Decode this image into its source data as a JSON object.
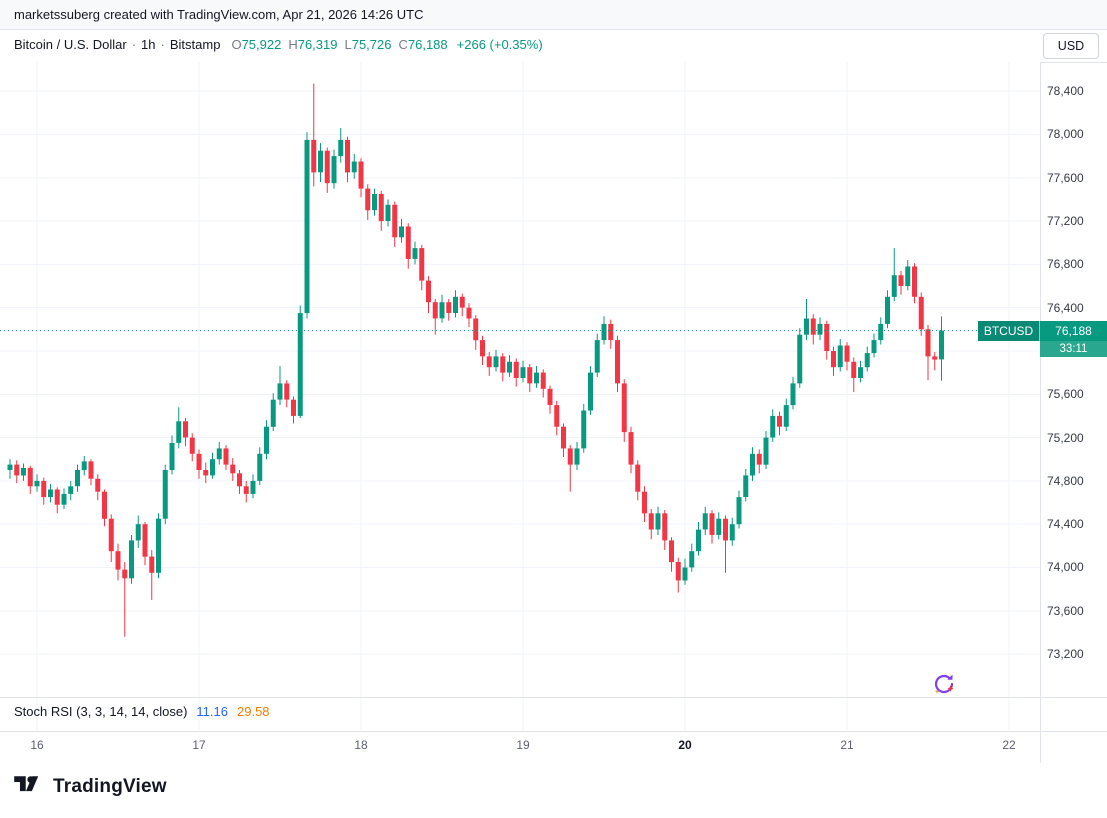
{
  "top_bar": {
    "attribution": "marketssuberg created with TradingView.com, Apr 21, 2026 14:26 UTC"
  },
  "legend": {
    "symbol_title": "Bitcoin / U.S. Dollar",
    "separator": "·",
    "interval": "1h",
    "exchange": "Bitstamp",
    "ohlc": {
      "o_label": "O",
      "o": "75,922",
      "h_label": "H",
      "h": "76,319",
      "l_label": "L",
      "l": "75,726",
      "c_label": "C",
      "c": "76,188"
    },
    "change": "+266 (+0.35%)"
  },
  "price_scale": {
    "currency_button": "USD",
    "labels": [
      {
        "value": 78400,
        "text": "78,400"
      },
      {
        "value": 78000,
        "text": "78,000"
      },
      {
        "value": 77600,
        "text": "77,600"
      },
      {
        "value": 77200,
        "text": "77,200"
      },
      {
        "value": 76800,
        "text": "76,800"
      },
      {
        "value": 76400,
        "text": "76,400"
      },
      {
        "value": 75600,
        "text": "75,600"
      },
      {
        "value": 75200,
        "text": "75,200"
      },
      {
        "value": 74800,
        "text": "74,800"
      },
      {
        "value": 74400,
        "text": "74,400"
      },
      {
        "value": 74000,
        "text": "74,000"
      },
      {
        "value": 73600,
        "text": "73,600"
      },
      {
        "value": 73200,
        "text": "73,200"
      }
    ],
    "badge": {
      "symbol": "BTCUSD",
      "price": "76,188",
      "countdown": "33:11"
    }
  },
  "indicator": {
    "name": "Stoch RSI (3, 3, 14, 14, close)",
    "k_value": "11.16",
    "d_value": "29.58"
  },
  "footer": {
    "brand": "TradingView"
  },
  "colors": {
    "up": "#089981",
    "down": "#f23645",
    "grid": "#f0f3fa",
    "k_line": "#2962ff",
    "d_line": "#f57c00"
  },
  "chart_data": {
    "type": "candlestick",
    "title": "Bitcoin / U.S. Dollar",
    "symbol": "BTCUSD",
    "exchange": "Bitstamp",
    "interval": "1h",
    "current_price": 76188,
    "countdown": "33:11",
    "change": {
      "abs": 266,
      "pct": 0.35
    },
    "last_candle": {
      "open": 75922,
      "high": 76319,
      "low": 75726,
      "close": 76188
    },
    "y_axis": {
      "min": 72900,
      "max": 78650,
      "tick_step": 400,
      "grid_ticks": [
        73200,
        73600,
        74000,
        74400,
        74800,
        75200,
        75600,
        76000,
        76400,
        76800,
        77200,
        77600,
        78000,
        78400
      ]
    },
    "x_axis": {
      "unit": "day-of-month (Apr 2026), hourly candles",
      "labels": [
        {
          "text": "16",
          "index": 4,
          "bold": false
        },
        {
          "text": "17",
          "index": 28,
          "bold": false
        },
        {
          "text": "18",
          "index": 52,
          "bold": false
        },
        {
          "text": "19",
          "index": 76,
          "bold": false
        },
        {
          "text": "20",
          "index": 100,
          "bold": true
        },
        {
          "text": "21",
          "index": 124,
          "bold": false
        },
        {
          "text": "22",
          "index": 148,
          "bold": false
        }
      ]
    },
    "indicator": {
      "name": "Stoch RSI",
      "params": [
        3,
        3,
        14,
        14,
        "close"
      ],
      "k": 11.16,
      "d": 29.58
    },
    "candles": [
      [
        74900,
        75000,
        74820,
        74950
      ],
      [
        74950,
        74990,
        74780,
        74850
      ],
      [
        74850,
        74960,
        74800,
        74920
      ],
      [
        74920,
        74940,
        74680,
        74750
      ],
      [
        74750,
        74860,
        74700,
        74800
      ],
      [
        74800,
        74830,
        74580,
        74650
      ],
      [
        74650,
        74770,
        74600,
        74720
      ],
      [
        74720,
        74740,
        74500,
        74580
      ],
      [
        74580,
        74730,
        74540,
        74680
      ],
      [
        74680,
        74800,
        74620,
        74750
      ],
      [
        74750,
        74950,
        74700,
        74900
      ],
      [
        74900,
        75030,
        74850,
        74980
      ],
      [
        74980,
        75000,
        74760,
        74820
      ],
      [
        74820,
        74860,
        74620,
        74700
      ],
      [
        74700,
        74720,
        74380,
        74450
      ],
      [
        74450,
        74490,
        74050,
        74150
      ],
      [
        74150,
        74220,
        73880,
        73980
      ],
      [
        73980,
        74050,
        73360,
        73900
      ],
      [
        73900,
        74300,
        73850,
        74250
      ],
      [
        74250,
        74480,
        74180,
        74400
      ],
      [
        74400,
        74420,
        74020,
        74100
      ],
      [
        74100,
        74160,
        73700,
        73950
      ],
      [
        73950,
        74500,
        73900,
        74450
      ],
      [
        74450,
        74950,
        74400,
        74900
      ],
      [
        74900,
        75220,
        74860,
        75150
      ],
      [
        75150,
        75480,
        75100,
        75350
      ],
      [
        75350,
        75380,
        75120,
        75200
      ],
      [
        75200,
        75240,
        74980,
        75050
      ],
      [
        75050,
        75090,
        74820,
        74900
      ],
      [
        74900,
        74970,
        74780,
        74850
      ],
      [
        74850,
        75060,
        74820,
        75000
      ],
      [
        75000,
        75160,
        74950,
        75100
      ],
      [
        75100,
        75130,
        74900,
        74950
      ],
      [
        74950,
        75010,
        74800,
        74870
      ],
      [
        74870,
        74900,
        74680,
        74750
      ],
      [
        74750,
        74800,
        74600,
        74680
      ],
      [
        74680,
        74860,
        74640,
        74800
      ],
      [
        74800,
        75110,
        74760,
        75050
      ],
      [
        75050,
        75360,
        75000,
        75300
      ],
      [
        75300,
        75610,
        75260,
        75550
      ],
      [
        75550,
        75860,
        75500,
        75700
      ],
      [
        75700,
        75730,
        75480,
        75550
      ],
      [
        75550,
        75580,
        75330,
        75400
      ],
      [
        75400,
        76420,
        75380,
        76350
      ],
      [
        76350,
        78020,
        76300,
        77950
      ],
      [
        77950,
        78470,
        77520,
        77650
      ],
      [
        77650,
        77920,
        77560,
        77850
      ],
      [
        77850,
        77880,
        77460,
        77550
      ],
      [
        77550,
        77860,
        77500,
        77800
      ],
      [
        77800,
        78060,
        77740,
        77950
      ],
      [
        77950,
        77980,
        77560,
        77650
      ],
      [
        77650,
        77820,
        77590,
        77750
      ],
      [
        77750,
        77780,
        77420,
        77500
      ],
      [
        77500,
        77540,
        77210,
        77300
      ],
      [
        77300,
        77500,
        77250,
        77450
      ],
      [
        77450,
        77480,
        77110,
        77200
      ],
      [
        77200,
        77400,
        77150,
        77350
      ],
      [
        77350,
        77380,
        76960,
        77050
      ],
      [
        77050,
        77220,
        77000,
        77150
      ],
      [
        77150,
        77180,
        76760,
        76850
      ],
      [
        76850,
        77010,
        76800,
        76950
      ],
      [
        76950,
        76980,
        76560,
        76650
      ],
      [
        76650,
        76690,
        76350,
        76450
      ],
      [
        76450,
        76480,
        76150,
        76300
      ],
      [
        76300,
        76520,
        76260,
        76450
      ],
      [
        76450,
        76480,
        76280,
        76350
      ],
      [
        76350,
        76560,
        76310,
        76500
      ],
      [
        76500,
        76530,
        76320,
        76400
      ],
      [
        76400,
        76440,
        76220,
        76300
      ],
      [
        76300,
        76330,
        76010,
        76100
      ],
      [
        76100,
        76140,
        75870,
        75950
      ],
      [
        75950,
        75990,
        75770,
        75850
      ],
      [
        75850,
        76010,
        75810,
        75950
      ],
      [
        75950,
        75980,
        75720,
        75800
      ],
      [
        75800,
        75960,
        75760,
        75900
      ],
      [
        75900,
        75930,
        75670,
        75750
      ],
      [
        75750,
        75910,
        75710,
        75850
      ],
      [
        75850,
        75880,
        75620,
        75700
      ],
      [
        75700,
        75860,
        75660,
        75800
      ],
      [
        75800,
        75830,
        75570,
        75650
      ],
      [
        75650,
        75680,
        75420,
        75500
      ],
      [
        75500,
        75540,
        75220,
        75300
      ],
      [
        75300,
        75330,
        75020,
        75100
      ],
      [
        75100,
        75130,
        74700,
        74950
      ],
      [
        74950,
        75160,
        74900,
        75100
      ],
      [
        75100,
        75510,
        75060,
        75450
      ],
      [
        75450,
        75860,
        75410,
        75800
      ],
      [
        75800,
        76160,
        75760,
        76100
      ],
      [
        76100,
        76320,
        76060,
        76250
      ],
      [
        76250,
        76290,
        76020,
        76100
      ],
      [
        76100,
        76140,
        75620,
        75700
      ],
      [
        75700,
        75740,
        75160,
        75250
      ],
      [
        75250,
        75300,
        74870,
        74950
      ],
      [
        74950,
        74990,
        74620,
        74700
      ],
      [
        74700,
        74750,
        74420,
        74500
      ],
      [
        74500,
        74540,
        74260,
        74350
      ],
      [
        74350,
        74560,
        74300,
        74500
      ],
      [
        74500,
        74530,
        74160,
        74250
      ],
      [
        74250,
        74280,
        73960,
        74050
      ],
      [
        74050,
        74090,
        73770,
        73880
      ],
      [
        73880,
        74080,
        73840,
        74000
      ],
      [
        74000,
        74220,
        73960,
        74150
      ],
      [
        74150,
        74420,
        74110,
        74350
      ],
      [
        74350,
        74560,
        74300,
        74500
      ],
      [
        74500,
        74530,
        74220,
        74300
      ],
      [
        74300,
        74510,
        74260,
        74450
      ],
      [
        74450,
        74480,
        73950,
        74250
      ],
      [
        74250,
        74460,
        74200,
        74400
      ],
      [
        74400,
        74710,
        74360,
        74650
      ],
      [
        74650,
        74910,
        74610,
        74850
      ],
      [
        74850,
        75110,
        74800,
        75050
      ],
      [
        75050,
        75090,
        74870,
        74950
      ],
      [
        74950,
        75260,
        74910,
        75200
      ],
      [
        75200,
        75460,
        75160,
        75400
      ],
      [
        75400,
        75440,
        75220,
        75300
      ],
      [
        75300,
        75560,
        75260,
        75500
      ],
      [
        75500,
        75760,
        75460,
        75700
      ],
      [
        75700,
        76210,
        75660,
        76150
      ],
      [
        76150,
        76480,
        76100,
        76300
      ],
      [
        76300,
        76340,
        76060,
        76150
      ],
      [
        76150,
        76310,
        76100,
        76250
      ],
      [
        76250,
        76280,
        75920,
        76000
      ],
      [
        76000,
        76040,
        75770,
        75850
      ],
      [
        75850,
        76110,
        75810,
        76050
      ],
      [
        76050,
        76080,
        75820,
        75900
      ],
      [
        75900,
        75940,
        75620,
        75750
      ],
      [
        75750,
        75910,
        75710,
        75850
      ],
      [
        75850,
        76040,
        75810,
        75980
      ],
      [
        75980,
        76160,
        75940,
        76100
      ],
      [
        76100,
        76310,
        76060,
        76250
      ],
      [
        76250,
        76560,
        76210,
        76500
      ],
      [
        76500,
        76950,
        76460,
        76700
      ],
      [
        76700,
        76740,
        76520,
        76600
      ],
      [
        76600,
        76840,
        76560,
        76780
      ],
      [
        76780,
        76810,
        76440,
        76500
      ],
      [
        76500,
        76540,
        76140,
        76200
      ],
      [
        76200,
        76240,
        75730,
        75950
      ],
      [
        75950,
        75990,
        75820,
        75920
      ],
      [
        75922,
        76319,
        75726,
        76188
      ]
    ]
  }
}
